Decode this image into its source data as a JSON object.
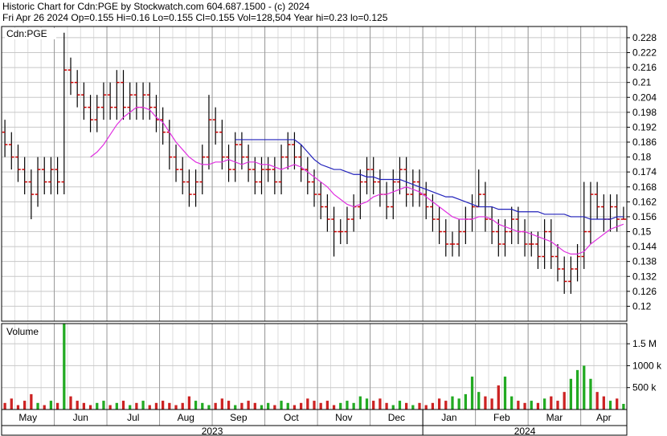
{
  "chart_data": {
    "type": "ohlc",
    "title": "Historic Chart for Cdn:PGE by Stockwatch.com 604.687.1500 - (c) 2024",
    "subtitle": "Fri Apr 26 2024  Op=0.155  Hi=0.16  Lo=0.155  Cl=0.155  Vol=128,504  Year hi=0.23  lo=0.125",
    "symbol": "Cdn:PGE",
    "categories": [
      "May",
      null,
      null,
      null,
      null,
      null,
      null,
      null,
      "Jun",
      null,
      null,
      null,
      null,
      null,
      null,
      null,
      "Jul",
      null,
      null,
      null,
      null,
      null,
      null,
      null,
      "Aug",
      null,
      null,
      null,
      null,
      null,
      null,
      null,
      "Sep",
      null,
      null,
      null,
      null,
      null,
      null,
      null,
      "Oct",
      null,
      null,
      null,
      null,
      null,
      null,
      null,
      "Nov",
      null,
      null,
      null,
      null,
      null,
      null,
      null,
      "Dec",
      null,
      null,
      null,
      null,
      null,
      null,
      null,
      "Jan",
      null,
      null,
      null,
      null,
      null,
      null,
      null,
      "Feb",
      null,
      null,
      null,
      null,
      null,
      null,
      null,
      "Mar",
      null,
      null,
      null,
      null,
      null,
      null,
      null,
      "Apr",
      null,
      null,
      null,
      null,
      null,
      null
    ],
    "years": [
      "2023",
      null,
      null,
      null,
      null,
      null,
      null,
      null,
      null,
      null,
      null,
      null,
      null,
      null,
      null,
      null,
      null,
      null,
      null,
      null,
      null,
      null,
      null,
      null,
      null,
      null,
      null,
      null,
      null,
      null,
      null,
      null,
      null,
      null,
      null,
      null,
      null,
      null,
      null,
      null,
      null,
      null,
      null,
      null,
      null,
      null,
      null,
      null,
      null,
      null,
      null,
      null,
      null,
      null,
      null,
      null,
      null,
      null,
      null,
      null,
      null,
      null,
      null,
      null,
      "2024",
      null,
      null,
      null,
      null,
      null,
      null,
      null,
      null,
      null,
      null,
      null,
      null,
      null,
      null,
      null,
      null,
      null,
      null,
      null,
      null,
      null,
      null,
      null,
      null,
      null,
      null,
      null,
      null,
      null,
      null
    ],
    "open": [
      0.19,
      0.185,
      0.18,
      0.175,
      0.17,
      0.165,
      0.175,
      0.17,
      0.175,
      0.17,
      0.215,
      0.21,
      0.205,
      0.2,
      0.195,
      0.2,
      0.205,
      0.2,
      0.21,
      0.2,
      0.205,
      0.2,
      0.205,
      0.2,
      0.195,
      0.19,
      0.18,
      0.175,
      0.17,
      0.165,
      0.17,
      0.18,
      0.195,
      0.19,
      0.18,
      0.175,
      0.185,
      0.18,
      0.175,
      0.17,
      0.175,
      0.175,
      0.17,
      0.18,
      0.185,
      0.18,
      0.175,
      0.17,
      0.165,
      0.16,
      0.155,
      0.15,
      0.15,
      0.155,
      0.16,
      0.17,
      0.175,
      0.17,
      0.165,
      0.16,
      0.17,
      0.175,
      0.165,
      0.17,
      0.165,
      0.16,
      0.155,
      0.15,
      0.145,
      0.145,
      0.15,
      0.155,
      0.16,
      0.165,
      0.155,
      0.15,
      0.145,
      0.15,
      0.155,
      0.15,
      0.145,
      0.145,
      0.14,
      0.15,
      0.14,
      0.135,
      0.13,
      0.135,
      0.14,
      0.15,
      0.165,
      0.16,
      0.155,
      0.16,
      0.155
    ],
    "high": [
      0.195,
      0.19,
      0.185,
      0.18,
      0.175,
      0.18,
      0.18,
      0.18,
      0.18,
      0.23,
      0.22,
      0.215,
      0.21,
      0.205,
      0.205,
      0.21,
      0.21,
      0.215,
      0.215,
      0.21,
      0.21,
      0.21,
      0.21,
      0.205,
      0.2,
      0.195,
      0.185,
      0.18,
      0.175,
      0.175,
      0.185,
      0.205,
      0.2,
      0.195,
      0.185,
      0.19,
      0.19,
      0.185,
      0.18,
      0.18,
      0.18,
      0.18,
      0.185,
      0.19,
      0.19,
      0.185,
      0.18,
      0.175,
      0.17,
      0.165,
      0.16,
      0.155,
      0.16,
      0.165,
      0.175,
      0.18,
      0.18,
      0.175,
      0.17,
      0.175,
      0.18,
      0.18,
      0.175,
      0.175,
      0.17,
      0.165,
      0.16,
      0.155,
      0.15,
      0.155,
      0.16,
      0.165,
      0.175,
      0.17,
      0.16,
      0.155,
      0.155,
      0.16,
      0.16,
      0.155,
      0.15,
      0.15,
      0.155,
      0.155,
      0.145,
      0.14,
      0.14,
      0.145,
      0.17,
      0.17,
      0.17,
      0.165,
      0.165,
      0.165,
      0.16
    ],
    "low": [
      0.18,
      0.175,
      0.17,
      0.165,
      0.155,
      0.16,
      0.165,
      0.165,
      0.165,
      0.165,
      0.205,
      0.2,
      0.195,
      0.19,
      0.19,
      0.195,
      0.195,
      0.195,
      0.195,
      0.195,
      0.195,
      0.195,
      0.195,
      0.19,
      0.185,
      0.175,
      0.17,
      0.165,
      0.16,
      0.16,
      0.165,
      0.175,
      0.185,
      0.175,
      0.17,
      0.17,
      0.175,
      0.17,
      0.165,
      0.165,
      0.17,
      0.165,
      0.165,
      0.175,
      0.175,
      0.17,
      0.165,
      0.16,
      0.155,
      0.15,
      0.14,
      0.145,
      0.145,
      0.15,
      0.155,
      0.165,
      0.165,
      0.16,
      0.155,
      0.155,
      0.165,
      0.16,
      0.16,
      0.16,
      0.155,
      0.15,
      0.145,
      0.14,
      0.14,
      0.14,
      0.145,
      0.15,
      0.16,
      0.15,
      0.145,
      0.14,
      0.14,
      0.145,
      0.145,
      0.14,
      0.14,
      0.135,
      0.135,
      0.135,
      0.13,
      0.125,
      0.125,
      0.13,
      0.135,
      0.145,
      0.155,
      0.15,
      0.15,
      0.15,
      0.155
    ],
    "close": [
      0.185,
      0.18,
      0.175,
      0.17,
      0.165,
      0.175,
      0.17,
      0.175,
      0.17,
      0.215,
      0.21,
      0.205,
      0.2,
      0.195,
      0.2,
      0.205,
      0.2,
      0.21,
      0.2,
      0.205,
      0.2,
      0.205,
      0.2,
      0.195,
      0.19,
      0.18,
      0.175,
      0.17,
      0.165,
      0.17,
      0.18,
      0.195,
      0.19,
      0.18,
      0.175,
      0.185,
      0.18,
      0.175,
      0.17,
      0.175,
      0.175,
      0.17,
      0.18,
      0.185,
      0.18,
      0.175,
      0.17,
      0.165,
      0.16,
      0.155,
      0.15,
      0.15,
      0.155,
      0.16,
      0.17,
      0.175,
      0.17,
      0.165,
      0.16,
      0.17,
      0.175,
      0.165,
      0.17,
      0.165,
      0.16,
      0.155,
      0.15,
      0.145,
      0.145,
      0.15,
      0.155,
      0.16,
      0.165,
      0.155,
      0.15,
      0.145,
      0.15,
      0.155,
      0.15,
      0.145,
      0.145,
      0.14,
      0.15,
      0.14,
      0.135,
      0.13,
      0.135,
      0.14,
      0.15,
      0.165,
      0.16,
      0.155,
      0.16,
      0.155,
      0.155
    ],
    "bar_color": "#000000",
    "tick_color": "#cc0000",
    "moving_averages": [
      {
        "color": "#e030e0",
        "values": [
          null,
          null,
          null,
          null,
          null,
          null,
          null,
          null,
          null,
          null,
          null,
          null,
          null,
          0.18,
          0.182,
          0.185,
          0.189,
          0.193,
          0.196,
          0.198,
          0.2,
          0.2,
          0.199,
          0.196,
          0.194,
          0.19,
          0.186,
          0.183,
          0.18,
          0.178,
          0.177,
          0.177,
          0.178,
          0.178,
          0.179,
          0.178,
          0.177,
          0.178,
          0.178,
          0.177,
          0.177,
          0.176,
          0.175,
          0.176,
          0.177,
          0.176,
          0.174,
          0.172,
          0.17,
          0.168,
          0.165,
          0.163,
          0.161,
          0.16,
          0.161,
          0.162,
          0.164,
          0.165,
          0.165,
          0.166,
          0.167,
          0.168,
          0.167,
          0.166,
          0.164,
          0.162,
          0.16,
          0.158,
          0.156,
          0.155,
          0.155,
          0.155,
          0.156,
          0.156,
          0.155,
          0.153,
          0.152,
          0.151,
          0.15,
          0.15,
          0.149,
          0.148,
          0.147,
          0.146,
          0.144,
          0.142,
          0.141,
          0.141,
          0.142,
          0.145,
          0.147,
          0.149,
          0.151,
          0.152,
          0.153
        ]
      },
      {
        "color": "#2222bb",
        "values": [
          null,
          null,
          null,
          null,
          null,
          null,
          null,
          null,
          null,
          null,
          null,
          null,
          null,
          null,
          null,
          null,
          null,
          null,
          null,
          null,
          null,
          null,
          null,
          null,
          null,
          null,
          null,
          null,
          null,
          null,
          null,
          null,
          null,
          null,
          null,
          0.187,
          0.187,
          0.187,
          0.187,
          0.187,
          0.187,
          0.187,
          0.187,
          0.187,
          0.187,
          0.185,
          0.182,
          0.179,
          0.177,
          0.176,
          0.175,
          0.175,
          0.174,
          0.173,
          0.173,
          0.172,
          0.172,
          0.171,
          0.171,
          0.171,
          0.171,
          0.17,
          0.169,
          0.168,
          0.167,
          0.166,
          0.165,
          0.164,
          0.164,
          0.163,
          0.162,
          0.161,
          0.16,
          0.16,
          0.16,
          0.159,
          0.159,
          0.159,
          0.158,
          0.158,
          0.158,
          0.158,
          0.157,
          0.157,
          0.157,
          0.157,
          0.156,
          0.156,
          0.156,
          0.155,
          0.155,
          0.155,
          0.155,
          0.156,
          0.156
        ]
      }
    ],
    "ylim": [
      0.114,
      0.2325
    ],
    "yticks": [
      0.12,
      0.126,
      0.132,
      0.138,
      0.144,
      0.15,
      0.156,
      0.162,
      0.168,
      0.174,
      0.18,
      0.186,
      0.192,
      0.198,
      0.204,
      0.21,
      0.216,
      0.222,
      0.228
    ],
    "grid": true,
    "volume": {
      "label": "Volume",
      "up_color": "#22aa22",
      "down_color": "#cc2222",
      "values": [
        150000,
        250000,
        100000,
        200000,
        350000,
        150000,
        100000,
        200000,
        150000,
        1950000,
        300000,
        200000,
        150000,
        100000,
        150000,
        200000,
        100000,
        150000,
        200000,
        100000,
        150000,
        200000,
        100000,
        150000,
        200000,
        150000,
        100000,
        150000,
        300000,
        200000,
        150000,
        100000,
        150000,
        250000,
        200000,
        100000,
        150000,
        200000,
        150000,
        100000,
        150000,
        100000,
        200000,
        150000,
        100000,
        150000,
        250000,
        200000,
        150000,
        200000,
        100000,
        150000,
        200000,
        150000,
        300000,
        250000,
        200000,
        250000,
        150000,
        100000,
        200000,
        150000,
        100000,
        150000,
        100000,
        150000,
        250000,
        200000,
        300000,
        250000,
        350000,
        750000,
        400000,
        300000,
        250000,
        550000,
        750000,
        300000,
        200000,
        150000,
        200000,
        150000,
        250000,
        300000,
        200000,
        400000,
        700000,
        900000,
        1000000,
        700000,
        400000,
        300000,
        200000,
        250000,
        128504
      ],
      "ylim": [
        0,
        1960000
      ],
      "yticks": [
        {
          "value": 500000,
          "label": "500 k"
        },
        {
          "value": 1000000,
          "label": "1000 k"
        },
        {
          "value": 1500000,
          "label": "1.5 M"
        }
      ]
    }
  }
}
